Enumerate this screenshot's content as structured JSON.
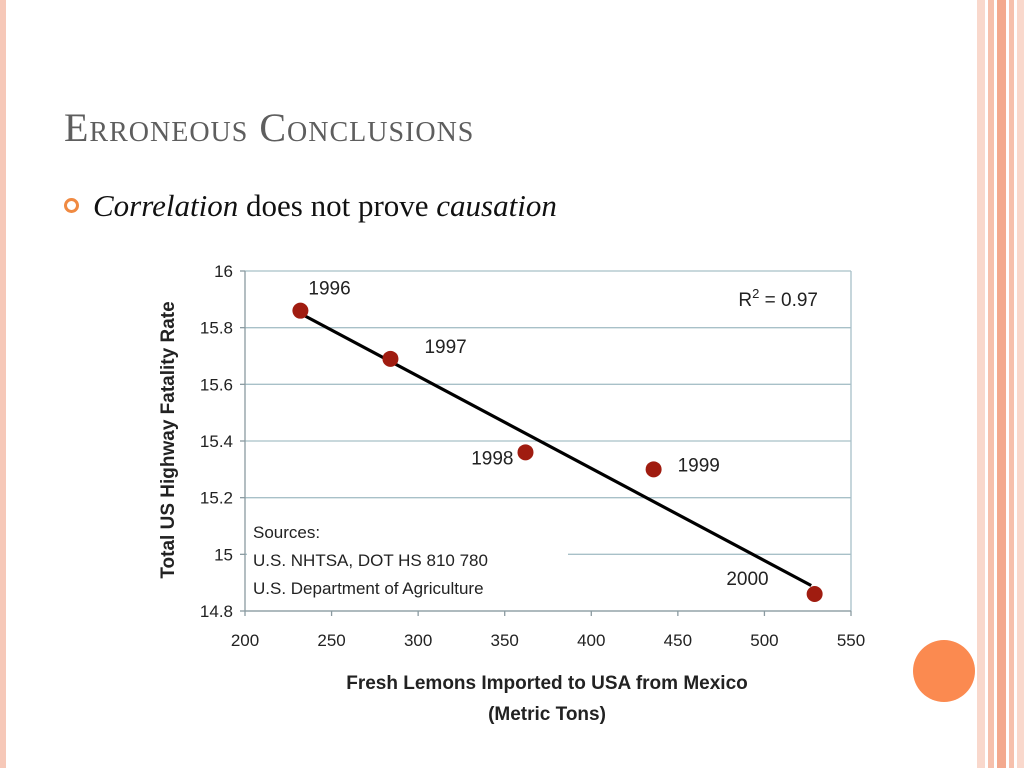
{
  "slide": {
    "title": "Erroneous Conclusions",
    "bullet": {
      "em1": "Correlation",
      "mid": " does not prove ",
      "em2": "causation"
    }
  },
  "colors": {
    "accent_orange": "#fb8a50",
    "stripe_light": "#f9d8cc",
    "stripe_dark": "#f3a98e",
    "marker": "#a01c10",
    "grid": "#a8c0c8"
  },
  "chart_data": {
    "type": "scatter",
    "title": "",
    "xlabel": "Fresh Lemons Imported to USA from Mexico",
    "xlabel2": "(Metric Tons)",
    "ylabel": "Total US Highway Fatality Rate",
    "xlim": [
      200,
      550
    ],
    "ylim": [
      14.8,
      16
    ],
    "xticks": [
      "200",
      "250",
      "300",
      "350",
      "400",
      "450",
      "500",
      "550"
    ],
    "yticks": [
      "14.8",
      "15",
      "15.2",
      "15.4",
      "15.6",
      "15.8",
      "16"
    ],
    "grid": true,
    "points": [
      {
        "label": "1996",
        "x": 232,
        "y": 15.86
      },
      {
        "label": "1997",
        "x": 284,
        "y": 15.69
      },
      {
        "label": "1998",
        "x": 362,
        "y": 15.36
      },
      {
        "label": "1999",
        "x": 436,
        "y": 15.3
      },
      {
        "label": "2000",
        "x": 529,
        "y": 14.86
      }
    ],
    "trendline": {
      "x": [
        232,
        527
      ],
      "y": [
        15.85,
        14.89
      ]
    },
    "r2_prefix": "R",
    "r2_sup": "2",
    "r2_value": " = 0.97",
    "sources": [
      "Sources:",
      "U.S. NHTSA, DOT HS 810 780",
      "U.S. Department of Agriculture"
    ]
  }
}
